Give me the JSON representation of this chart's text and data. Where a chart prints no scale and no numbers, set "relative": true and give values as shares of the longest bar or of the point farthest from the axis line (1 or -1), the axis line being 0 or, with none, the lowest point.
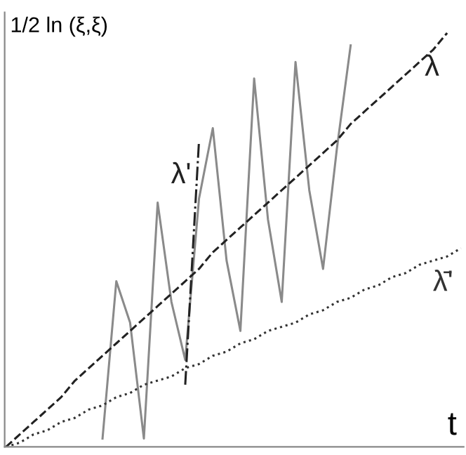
{
  "chart_data": {
    "type": "line",
    "relative": true,
    "xlabel": "t",
    "ylabel": "1/2 ln (ξ,ξ)",
    "legend": false,
    "tick_labels": false,
    "categories": [
      null,
      null,
      null,
      null,
      null,
      null,
      null,
      null,
      null,
      null,
      null,
      null,
      null,
      null,
      null,
      null,
      null,
      null,
      null,
      null,
      null,
      null,
      null,
      null,
      null,
      null,
      null,
      null,
      null,
      null,
      null,
      null,
      null,
      null
    ],
    "series": [
      {
        "color": "#8a8a8a",
        "line_style": "solid",
        "values": [
          null,
          null,
          null,
          null,
          null,
          null,
          null,
          0.02,
          0.4,
          0.3,
          0.02,
          0.59,
          0.35,
          0.21,
          0.6,
          0.77,
          0.45,
          0.28,
          0.89,
          0.55,
          0.35,
          0.93,
          0.62,
          0.43,
          0.72,
          0.97,
          null,
          null,
          null,
          null,
          null,
          null,
          null,
          null
        ]
      },
      {
        "name": "λ'",
        "color": "#222222",
        "line_style": "dashdot",
        "values": [
          null,
          null,
          null,
          null,
          null,
          null,
          null,
          null,
          null,
          null,
          null,
          null,
          null,
          0.15,
          0.74,
          null,
          null,
          null,
          null,
          null,
          null,
          null,
          null,
          null,
          null,
          null,
          null,
          null,
          null,
          null,
          null,
          null,
          null,
          null
        ]
      },
      {
        "name": "λ",
        "color": "#222222",
        "line_style": "dashed",
        "values": [
          0,
          0.03,
          0.06,
          0.09,
          0.12,
          0.16,
          0.19,
          0.22,
          0.25,
          0.28,
          0.31,
          0.34,
          0.37,
          0.4,
          0.43,
          0.47,
          0.5,
          0.53,
          0.56,
          0.59,
          0.62,
          0.65,
          0.68,
          0.71,
          0.74,
          0.78,
          0.81,
          0.84,
          0.87,
          0.9,
          0.93,
          0.96,
          1.0,
          null
        ]
      },
      {
        "name": "λ̄'",
        "color": "#333333",
        "line_style": "dotted",
        "values": [
          0,
          0.01,
          0.03,
          0.04,
          0.06,
          0.07,
          0.09,
          0.1,
          0.12,
          0.13,
          0.15,
          0.16,
          0.17,
          0.19,
          0.2,
          0.22,
          0.23,
          0.25,
          0.26,
          0.28,
          0.29,
          0.3,
          0.32,
          0.33,
          0.35,
          0.36,
          0.38,
          0.39,
          0.41,
          0.42,
          0.44,
          0.45,
          0.46,
          0.48
        ]
      }
    ]
  }
}
